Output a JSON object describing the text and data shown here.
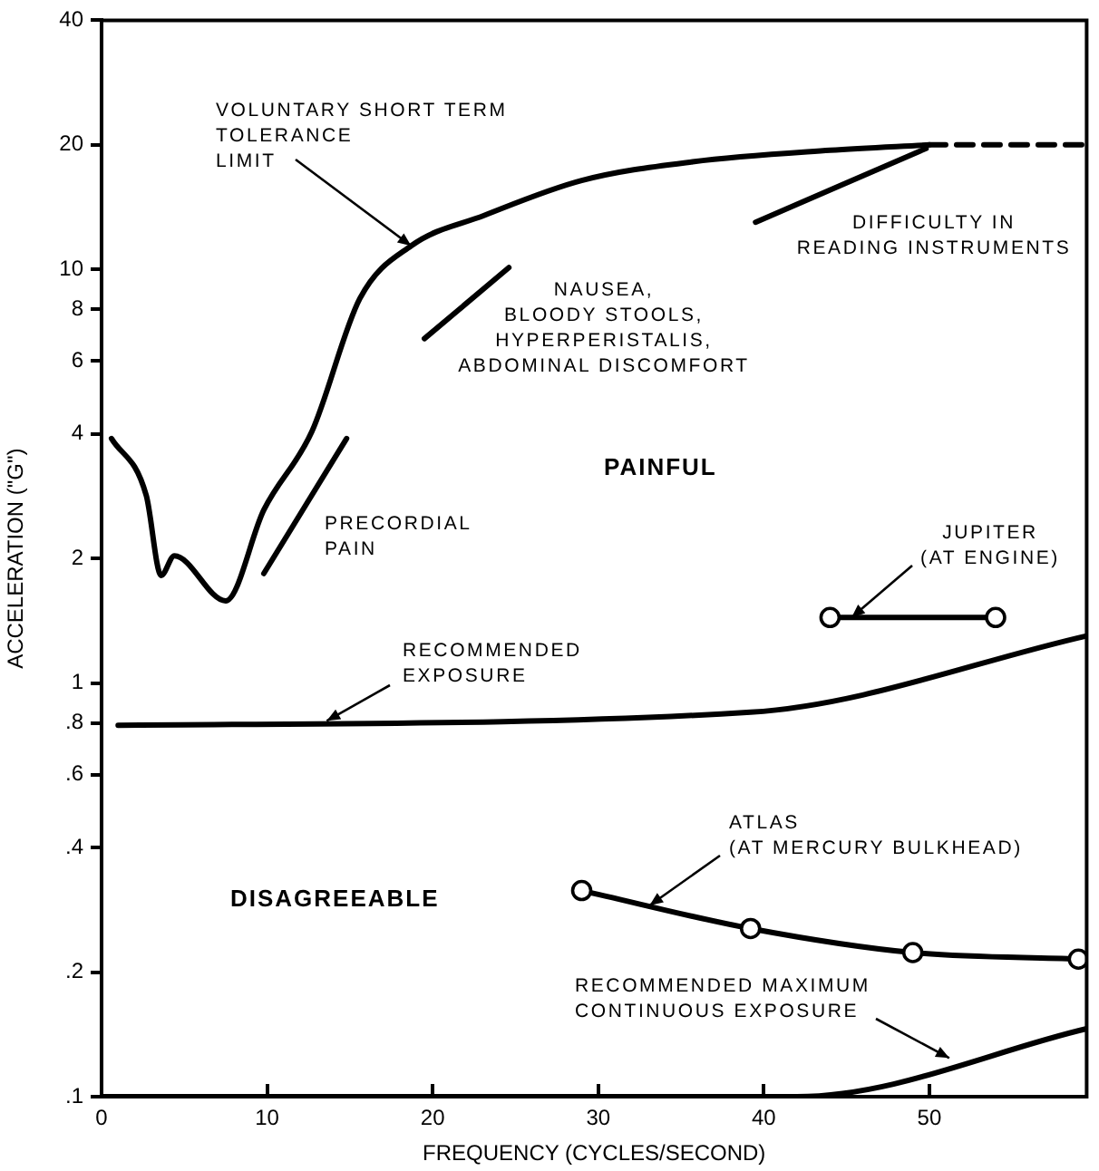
{
  "chart_data": {
    "type": "line",
    "xlabel": "FREQUENCY (CYCLES/SECOND)",
    "ylabel": "ACCELERATION (\"G\")",
    "log": "y",
    "grid": false,
    "legend": false,
    "xlim": [
      0,
      59.5
    ],
    "xticks": [
      0,
      10,
      20,
      30,
      40,
      50
    ],
    "ylim": [
      0.1,
      40
    ],
    "yticks": [
      {
        "value": 0.1,
        "label": ".1"
      },
      {
        "value": 0.2,
        "label": ".2"
      },
      {
        "value": 0.4,
        "label": ".4"
      },
      {
        "value": 0.6,
        "label": ".6"
      },
      {
        "value": 0.8,
        "label": ".8"
      },
      1,
      2,
      4,
      6,
      8,
      10,
      20,
      40
    ],
    "series": [
      {
        "type": "line",
        "color": "#000000",
        "marker": "none",
        "line_style": "solid",
        "x": [
          0.6,
          2.7,
          3.6,
          4.4,
          7.5,
          9.8,
          12.7,
          15.6,
          18.7,
          23.1,
          29,
          35.7,
          44,
          50
        ],
        "values": [
          3.9,
          2.84,
          1.82,
          2.03,
          1.58,
          2.62,
          4.05,
          8.5,
          11.4,
          13.5,
          16.4,
          18.2,
          19.4,
          20
        ]
      },
      {
        "type": "line",
        "color": "#000000",
        "marker": "none",
        "line_style": "dashed",
        "x": [
          50,
          59.5
        ],
        "values": [
          20,
          20
        ]
      },
      {
        "type": "line",
        "color": "#000000",
        "marker": "none",
        "line_style": "solid",
        "x": [
          1,
          39.2,
          59.5
        ],
        "values": [
          0.79,
          0.85,
          1.3
        ]
      },
      {
        "type": "line",
        "color": "#000000",
        "marker": "none",
        "line_style": "solid",
        "x": [
          0,
          42,
          59.5
        ],
        "values": [
          0.1,
          0.1,
          0.146
        ]
      },
      {
        "type": "line",
        "color": "#000000",
        "marker": "circle",
        "line_style": "solid",
        "x": [
          44,
          54
        ],
        "values": [
          1.44,
          1.44
        ]
      },
      {
        "type": "line",
        "color": "#000000",
        "marker": "circle",
        "line_style": "solid",
        "x": [
          29,
          39.2,
          49,
          59
        ],
        "values": [
          0.315,
          0.255,
          0.223,
          0.215
        ]
      },
      {
        "type": "line",
        "color": "#000000",
        "marker": "none",
        "line_style": "solid",
        "x": [
          9.8,
          14.8
        ],
        "values": [
          1.84,
          3.9
        ]
      },
      {
        "type": "line",
        "color": "#000000",
        "marker": "none",
        "line_style": "solid",
        "x": [
          19.5,
          24.6
        ],
        "values": [
          6.8,
          10.1
        ]
      },
      {
        "type": "line",
        "color": "#000000",
        "marker": "none",
        "line_style": "solid",
        "x": [
          39.5,
          49.8
        ],
        "values": [
          13,
          19.6
        ]
      }
    ],
    "annotations": [
      {
        "text": "VOLUNTARY SHORT TERM\nTOLERANCE\nLIMIT",
        "x": 18.7,
        "y": 11.4
      },
      "NAUSEA,\nBLOODY STOOLS,\nHYPERPERISTALIS,\nABDOMINAL DISCOMFORT",
      "DIFFICULTY IN\nREADING INSTRUMENTS",
      "PAINFUL",
      "PRECORDIAL\nPAIN",
      {
        "text": "JUPITER\n(AT ENGINE)",
        "x": 45.3,
        "y": 1.44
      },
      {
        "text": "RECOMMENDED\nEXPOSURE",
        "x": 13.6,
        "y": 0.81
      },
      {
        "text": "ATLAS\n(AT MERCURY BULKHEAD)",
        "x": 33.1,
        "y": 0.29
      },
      "DISAGREEABLE",
      {
        "text": "RECOMMENDED MAXIMUM\nCONTINUOUS EXPOSURE",
        "x": 51.2,
        "y": 0.124
      }
    ]
  }
}
